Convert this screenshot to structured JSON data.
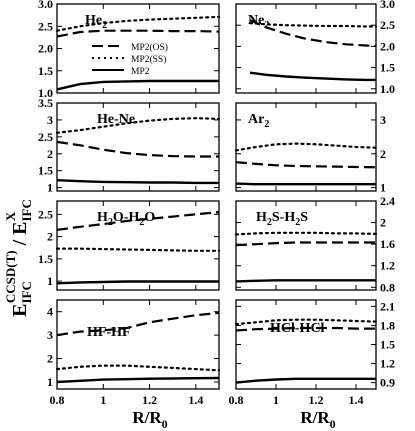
{
  "figure": {
    "ylabel_main": "E",
    "ylabel_main_sub": "IFC",
    "ylabel_main_sup": "CCSD(T)",
    "ylabel_sep": " / E",
    "ylabel_den_sub": "IFC",
    "ylabel_den_sup": "X",
    "xlabel_main": "R/R",
    "xlabel_sub": "0",
    "legend": [
      {
        "label": "MP2(OS)",
        "style": "dashed"
      },
      {
        "label": "MP2(SS)",
        "style": "dotted"
      },
      {
        "label": "MP2",
        "style": "solid"
      }
    ]
  },
  "chart_data": [
    {
      "type": "line",
      "title": "He",
      "title_sub": "2",
      "x": [
        0.8,
        0.9,
        1.0,
        1.1,
        1.2,
        1.3,
        1.4,
        1.5
      ],
      "xlim": [
        0.8,
        1.5
      ],
      "ylim": [
        1.0,
        3.0
      ],
      "xticks": [
        "0.8",
        "1",
        "1.2",
        "1.4"
      ],
      "yticks": [
        "1.0",
        "1.5",
        "2.0",
        "2.5",
        "3.0"
      ],
      "ytick_side": "left",
      "series": [
        {
          "name": "MP2(OS)",
          "style": "dashed",
          "values": [
            2.27,
            2.37,
            2.4,
            2.4,
            2.4,
            2.39,
            2.39,
            2.38
          ]
        },
        {
          "name": "MP2(SS)",
          "style": "dotted",
          "values": [
            2.4,
            2.5,
            2.57,
            2.62,
            2.65,
            2.67,
            2.69,
            2.71
          ]
        },
        {
          "name": "MP2",
          "style": "solid",
          "values": [
            1.08,
            1.2,
            1.25,
            1.26,
            1.27,
            1.27,
            1.27,
            1.27
          ]
        }
      ]
    },
    {
      "type": "line",
      "title": "Ne",
      "title_sub": "2",
      "x": [
        0.87,
        0.95,
        1.05,
        1.15,
        1.25,
        1.35,
        1.45,
        1.5
      ],
      "xlim": [
        0.8,
        1.5
      ],
      "ylim": [
        0.9,
        3.0
      ],
      "xticks": [
        "0.8",
        "1",
        "1.2",
        "1.4"
      ],
      "yticks": [
        "1.0",
        "1.5",
        "2.0",
        "2.5",
        "3.0"
      ],
      "ytick_side": "right",
      "series": [
        {
          "name": "MP2(OS)",
          "style": "dashed",
          "values": [
            2.62,
            2.45,
            2.3,
            2.18,
            2.1,
            2.05,
            2.02,
            2.01
          ]
        },
        {
          "name": "MP2(SS)",
          "style": "dotted",
          "values": [
            2.55,
            2.52,
            2.5,
            2.49,
            2.48,
            2.48,
            2.47,
            2.47
          ]
        },
        {
          "name": "MP2",
          "style": "solid",
          "values": [
            1.38,
            1.33,
            1.29,
            1.26,
            1.24,
            1.22,
            1.21,
            1.21
          ]
        }
      ]
    },
    {
      "type": "line",
      "title": "He-Ne",
      "title_sub": "",
      "x": [
        0.8,
        0.9,
        1.0,
        1.1,
        1.2,
        1.3,
        1.4,
        1.5
      ],
      "xlim": [
        0.8,
        1.5
      ],
      "ylim": [
        0.9,
        3.5
      ],
      "xticks": [
        "0.8",
        "1",
        "1.2",
        "1.4"
      ],
      "yticks": [
        "1",
        "1.5",
        "2",
        "2.5",
        "3",
        "3.5"
      ],
      "ytick_side": "left",
      "series": [
        {
          "name": "MP2(OS)",
          "style": "dashed",
          "values": [
            2.35,
            2.25,
            2.12,
            2.02,
            1.96,
            1.93,
            1.92,
            1.92
          ]
        },
        {
          "name": "MP2(SS)",
          "style": "dotted",
          "values": [
            2.62,
            2.7,
            2.8,
            2.9,
            2.98,
            3.03,
            3.05,
            3.03
          ]
        },
        {
          "name": "MP2",
          "style": "solid",
          "values": [
            1.22,
            1.19,
            1.17,
            1.16,
            1.15,
            1.15,
            1.14,
            1.14
          ]
        }
      ]
    },
    {
      "type": "line",
      "title": "Ar",
      "title_sub": "2",
      "x": [
        0.8,
        0.9,
        1.0,
        1.1,
        1.2,
        1.3,
        1.4,
        1.5
      ],
      "xlim": [
        0.8,
        1.5
      ],
      "ylim": [
        0.9,
        3.5
      ],
      "xticks": [
        "0.8",
        "1",
        "1.2",
        "1.4"
      ],
      "yticks": [
        "1",
        "2",
        "3"
      ],
      "ytick_side": "right",
      "series": [
        {
          "name": "MP2(OS)",
          "style": "dashed",
          "values": [
            1.75,
            1.7,
            1.66,
            1.64,
            1.63,
            1.62,
            1.61,
            1.6
          ]
        },
        {
          "name": "MP2(SS)",
          "style": "dotted",
          "values": [
            2.1,
            2.2,
            2.28,
            2.3,
            2.28,
            2.24,
            2.2,
            2.18
          ]
        },
        {
          "name": "MP2",
          "style": "solid",
          "values": [
            1.12,
            1.1,
            1.1,
            1.1,
            1.1,
            1.1,
            1.1,
            1.1
          ]
        }
      ]
    },
    {
      "type": "line",
      "title": "H",
      "title_sub": "2",
      "title_rest": "O-H",
      "title_sub2": "2",
      "title_end": "O",
      "x": [
        0.8,
        0.9,
        1.0,
        1.1,
        1.2,
        1.3,
        1.4,
        1.5
      ],
      "xlim": [
        0.8,
        1.5
      ],
      "ylim": [
        0.8,
        2.8
      ],
      "xticks": [
        "0.8",
        "1",
        "1.2",
        "1.4"
      ],
      "yticks": [
        "1",
        "1.5",
        "2",
        "2.5"
      ],
      "ytick_side": "left",
      "series": [
        {
          "name": "MP2(OS)",
          "style": "dashed",
          "values": [
            2.15,
            2.22,
            2.28,
            2.35,
            2.4,
            2.45,
            2.5,
            2.55
          ]
        },
        {
          "name": "MP2(SS)",
          "style": "dotted",
          "values": [
            1.73,
            1.73,
            1.72,
            1.71,
            1.7,
            1.69,
            1.68,
            1.68
          ]
        },
        {
          "name": "MP2",
          "style": "solid",
          "values": [
            0.95,
            0.97,
            0.98,
            0.99,
            0.99,
            0.99,
            0.99,
            0.99
          ]
        }
      ]
    },
    {
      "type": "line",
      "title": "H",
      "title_sub": "2",
      "title_rest": "S-H",
      "title_sub2": "2",
      "title_end": "S",
      "x": [
        0.8,
        0.9,
        1.0,
        1.1,
        1.2,
        1.3,
        1.4,
        1.5
      ],
      "xlim": [
        0.8,
        1.5
      ],
      "ylim": [
        0.75,
        2.4
      ],
      "xticks": [
        "0.8",
        "1",
        "1.2",
        "1.4"
      ],
      "yticks": [
        "0.8",
        "1.2",
        "1.6",
        "2",
        "2.4"
      ],
      "ytick_side": "right",
      "series": [
        {
          "name": "MP2(OS)",
          "style": "dashed",
          "values": [
            1.58,
            1.6,
            1.62,
            1.63,
            1.63,
            1.63,
            1.63,
            1.63
          ]
        },
        {
          "name": "MP2(SS)",
          "style": "dotted",
          "values": [
            1.78,
            1.8,
            1.81,
            1.81,
            1.81,
            1.8,
            1.8,
            1.79
          ]
        },
        {
          "name": "MP2",
          "style": "solid",
          "values": [
            0.91,
            0.92,
            0.93,
            0.93,
            0.93,
            0.93,
            0.93,
            0.93
          ]
        }
      ]
    },
    {
      "type": "line",
      "title": "HF-HF",
      "title_sub": "",
      "x": [
        0.8,
        0.9,
        1.0,
        1.1,
        1.2,
        1.3,
        1.4,
        1.5
      ],
      "xlim": [
        0.8,
        1.5
      ],
      "ylim": [
        0.7,
        4.5
      ],
      "xticks": [
        "0.8",
        "1",
        "1.2",
        "1.4"
      ],
      "yticks": [
        "1",
        "2",
        "3",
        "4"
      ],
      "ytick_side": "left",
      "series": [
        {
          "name": "MP2(OS)",
          "style": "dashed",
          "values": [
            3.0,
            3.15,
            3.2,
            3.3,
            3.55,
            3.7,
            3.85,
            3.95
          ]
        },
        {
          "name": "MP2(SS)",
          "style": "dotted",
          "values": [
            1.55,
            1.65,
            1.7,
            1.7,
            1.65,
            1.6,
            1.55,
            1.5
          ]
        },
        {
          "name": "MP2",
          "style": "solid",
          "values": [
            1.0,
            1.05,
            1.1,
            1.12,
            1.14,
            1.15,
            1.16,
            1.17
          ]
        }
      ]
    },
    {
      "type": "line",
      "title": "HCl-HCl",
      "title_sub": "",
      "x": [
        0.8,
        0.9,
        1.0,
        1.1,
        1.2,
        1.3,
        1.4,
        1.5
      ],
      "xlim": [
        0.8,
        1.5
      ],
      "ylim": [
        0.8,
        2.2
      ],
      "xticks": [
        "0.8",
        "1",
        "1.2",
        "1.4"
      ],
      "yticks": [
        "0.9",
        "1.2",
        "1.5",
        "1.8",
        "2.1"
      ],
      "ytick_side": "right",
      "series": [
        {
          "name": "MP2(OS)",
          "style": "dashed",
          "values": [
            1.72,
            1.74,
            1.75,
            1.76,
            1.76,
            1.76,
            1.75,
            1.75
          ]
        },
        {
          "name": "MP2(SS)",
          "style": "dotted",
          "values": [
            1.82,
            1.85,
            1.88,
            1.89,
            1.89,
            1.88,
            1.87,
            1.86
          ]
        },
        {
          "name": "MP2",
          "style": "solid",
          "values": [
            0.9,
            0.93,
            0.95,
            0.96,
            0.96,
            0.96,
            0.96,
            0.96
          ]
        }
      ]
    }
  ]
}
